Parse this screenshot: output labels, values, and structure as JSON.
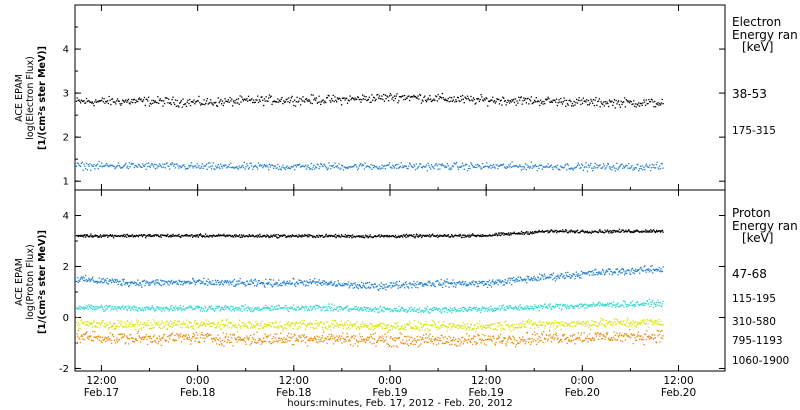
{
  "chart_data": [
    {
      "type": "scatter",
      "instrument": "ACE EPAM",
      "ylabel_lines": [
        "ACE EPAM",
        "log(Electron Flux)",
        "[1/(cm²s ster MeV)]"
      ],
      "ylim": [
        0.8,
        5.0
      ],
      "yticks": [
        1,
        2,
        3,
        4
      ],
      "legend_title_lines": [
        "Electron",
        "Energy ran",
        "[keV]"
      ],
      "series": [
        {
          "name": "38-53",
          "color": "#000000",
          "y": [
            2.82,
            2.83,
            2.8,
            2.86,
            2.86,
            2.93,
            2.86,
            2.84,
            2.8,
            2.79
          ]
        },
        {
          "name": "175-315",
          "color": "#1f7fd0",
          "y": [
            1.36,
            1.36,
            1.34,
            1.34,
            1.35,
            1.35,
            1.35,
            1.35,
            1.34,
            1.34
          ]
        }
      ]
    },
    {
      "type": "scatter",
      "instrument": "ACE EPAM",
      "ylabel_lines": [
        "ACE EPAM",
        "log(Proton Flux)",
        "[1/(cm²s ster MeV)]"
      ],
      "ylim": [
        -2.1,
        5.0
      ],
      "yticks": [
        -2,
        0,
        2,
        4
      ],
      "legend_title_lines": [
        "Proton",
        "Energy ran",
        "[keV]"
      ],
      "series": [
        {
          "name": "47-68",
          "color": "#000000",
          "y": [
            3.23,
            3.23,
            3.23,
            3.22,
            3.22,
            3.21,
            3.22,
            3.24,
            3.4,
            3.4,
            3.42
          ]
        },
        {
          "name": "115-195",
          "color": "#1f7fd0",
          "y": [
            1.52,
            1.38,
            1.4,
            1.36,
            1.4,
            1.24,
            1.36,
            1.36,
            1.6,
            1.8,
            1.92
          ]
        },
        {
          "name": "310-580",
          "color": "#2ed8d0",
          "y": [
            0.42,
            0.38,
            0.4,
            0.36,
            0.42,
            0.34,
            0.32,
            0.36,
            0.44,
            0.52,
            0.58
          ]
        },
        {
          "name": "795-1193",
          "color": "#d7e600",
          "y": [
            -0.22,
            -0.28,
            -0.24,
            -0.3,
            -0.26,
            -0.3,
            -0.34,
            -0.32,
            -0.24,
            -0.2,
            -0.18
          ]
        },
        {
          "name": "1060-1900",
          "color": "#ee8800",
          "y": [
            -0.72,
            -0.8,
            -0.76,
            -0.84,
            -0.78,
            -0.84,
            -0.88,
            -0.86,
            -0.76,
            -0.74,
            -0.7
          ]
        }
      ]
    }
  ],
  "x_axis": {
    "ticks": [
      {
        "time": "12:00",
        "day": "Feb.17",
        "hours": 12
      },
      {
        "time": "0:00",
        "day": "Feb.18",
        "hours": 24
      },
      {
        "time": "12:00",
        "day": "Feb.18",
        "hours": 36
      },
      {
        "time": "0:00",
        "day": "Feb.19",
        "hours": 48
      },
      {
        "time": "12:00",
        "day": "Feb.19",
        "hours": 60
      },
      {
        "time": "0:00",
        "day": "Feb.20",
        "hours": 72
      },
      {
        "time": "12:00",
        "day": "Feb.20",
        "hours": 84
      }
    ],
    "range_hours": [
      8.7,
      89.8
    ],
    "data_end_hours": 82,
    "title": "hours:minutes, Feb. 17, 2012 - Feb. 20, 2012"
  }
}
